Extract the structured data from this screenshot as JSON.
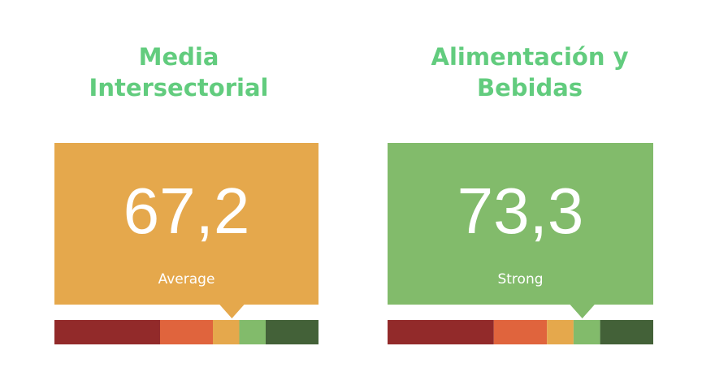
{
  "cards": [
    {
      "title_lines": [
        "Media",
        "Intersectorial"
      ],
      "value": 67.2,
      "value_label": "67,2",
      "rating": "Average"
    },
    {
      "title_lines": [
        "Alimentación y",
        "Bebidas"
      ],
      "value": 73.3,
      "value_label": "73,3",
      "rating": "Strong"
    }
  ],
  "scale": {
    "range": [
      0,
      100
    ],
    "segments": [
      {
        "from": 0,
        "to": 40,
        "color": "#922a2a"
      },
      {
        "from": 40,
        "to": 60,
        "color": "#e0643d"
      },
      {
        "from": 60,
        "to": 70,
        "color": "#e5a84c"
      },
      {
        "from": 70,
        "to": 80,
        "color": "#82bb6b"
      },
      {
        "from": 80,
        "to": 100,
        "color": "#436138"
      }
    ]
  }
}
